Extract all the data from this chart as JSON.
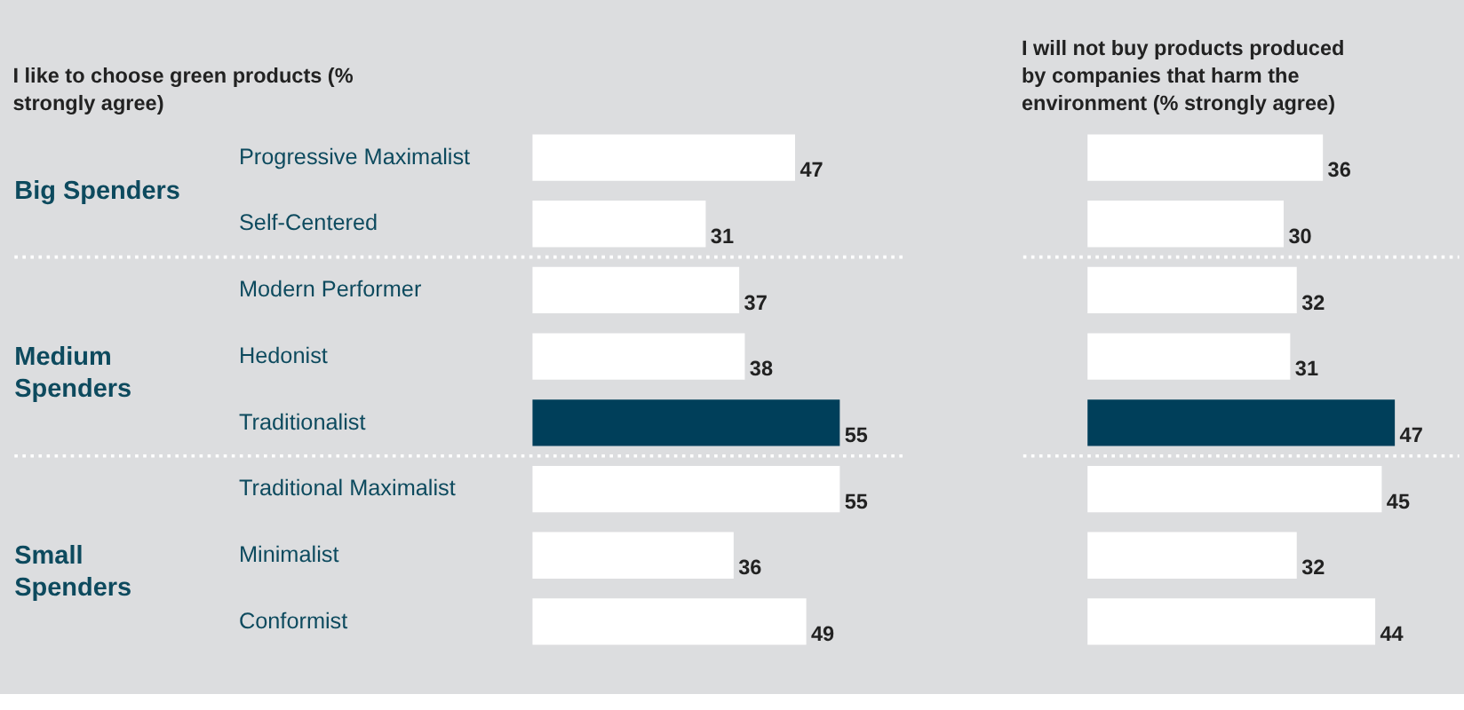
{
  "chart_data": [
    {
      "type": "bar",
      "orientation": "horizontal",
      "title": "I like to choose green products (% strongly agree)",
      "tick_labels": "y",
      "data_labels": true,
      "categories": [
        "Progressive Maximalist",
        "Self-Centered",
        "Modern Performer",
        "Hedonist",
        "Traditionalist",
        "Traditional Maximalist",
        "Minimalist",
        "Conformist"
      ],
      "values": [
        47,
        31,
        37,
        38,
        55,
        55,
        36,
        49
      ],
      "colors": [
        "#ffffff",
        "#ffffff",
        "#ffffff",
        "#ffffff",
        "#003f5a",
        "#ffffff",
        "#ffffff",
        "#ffffff"
      ],
      "annotations": [
        "Big Spenders",
        "Medium Spenders",
        "Small Spenders"
      ]
    },
    {
      "type": "bar",
      "orientation": "horizontal",
      "title": "I will not buy products produced by companies that harm the environment (% strongly agree)",
      "tick_labels": false,
      "data_labels": true,
      "categories": [
        null,
        null,
        null,
        null,
        null,
        null,
        null,
        null
      ],
      "values": [
        36,
        30,
        32,
        31,
        47,
        45,
        32,
        44
      ],
      "colors": [
        "#ffffff",
        "#ffffff",
        "#ffffff",
        "#ffffff",
        "#003f5a",
        "#ffffff",
        "#ffffff",
        "#ffffff"
      ]
    }
  ]
}
